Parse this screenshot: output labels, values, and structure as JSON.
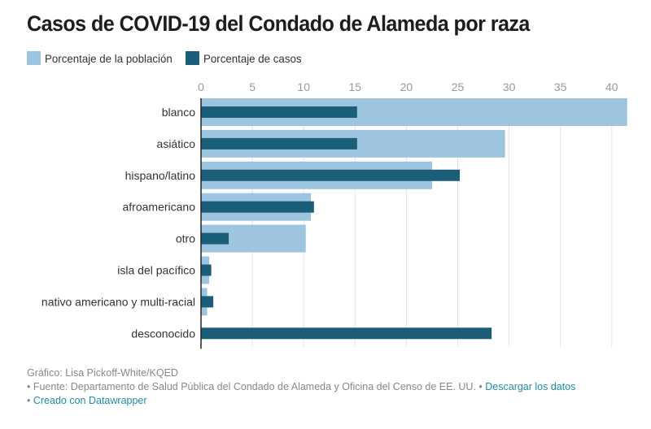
{
  "title": "Casos de COVID-19 del Condado de Alameda por raza",
  "legend": [
    {
      "label": "Porcentaje de la población",
      "color": "#9ec5e0"
    },
    {
      "label": "Porcentaje de casos",
      "color": "#1a5e7a"
    }
  ],
  "chart_data": {
    "type": "bar",
    "orientation": "horizontal",
    "title": "Casos de COVID-19 del Condado de Alameda por raza",
    "xlabel": "",
    "ylabel": "",
    "xlim": [
      0,
      41.5
    ],
    "xticks": [
      0,
      5,
      10,
      15,
      20,
      25,
      30,
      35,
      40
    ],
    "grid": true,
    "legend_position": "top-left",
    "categories": [
      "blanco",
      "asiático",
      "hispano/latino",
      "afroamericano",
      "otro",
      "isla del pacífico",
      "nativo americano y multi-racial",
      "desconocido"
    ],
    "series": [
      {
        "name": "Porcentaje de la población",
        "color": "#9ec5e0",
        "values": [
          41.5,
          29.6,
          22.5,
          10.7,
          10.2,
          0.8,
          0.6,
          0
        ]
      },
      {
        "name": "Porcentaje de casos",
        "color": "#1a5e7a",
        "values": [
          15.2,
          15.2,
          25.2,
          11.0,
          2.7,
          1.0,
          1.2,
          28.3
        ]
      }
    ]
  },
  "footer": {
    "credit": "Gráfico: Lisa Pickoff-White/KQED",
    "source": "• Fuente: Departamento de Salud Pública del Condado de Alameda y Oficina del Censo de EE. UU. •",
    "download_link": "Descargar los datos",
    "created_bullet": "•",
    "created_link": "Creado con Datawrapper"
  }
}
